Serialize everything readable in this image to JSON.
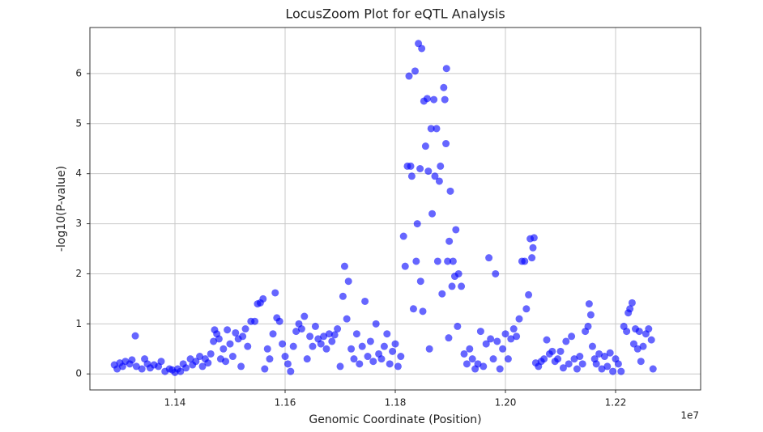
{
  "chart_data": {
    "type": "scatter",
    "title": "LocusZoom Plot for eQTL Analysis",
    "x_label": "Genomic Coordinate (Position)",
    "y_label": "-log10(P-value)",
    "x_offset_label": "1e7",
    "color": "#0000ff",
    "alpha": 0.6,
    "grid": true,
    "xlim": [
      11245600,
      12354400
    ],
    "ylim": [
      -0.32,
      6.92
    ],
    "xticks": [
      {
        "value": 11400000,
        "label": "1.14"
      },
      {
        "value": 11600000,
        "label": "1.16"
      },
      {
        "value": 11800000,
        "label": "1.18"
      },
      {
        "value": 12000000,
        "label": "1.20"
      },
      {
        "value": 12200000,
        "label": "1.22"
      }
    ],
    "yticks": [
      0,
      1,
      2,
      3,
      4,
      5,
      6
    ],
    "x": [
      11290000,
      11295000,
      11300000,
      11305000,
      11310000,
      11318000,
      11322000,
      11328000,
      11330000,
      11340000,
      11345000,
      11350000,
      11355000,
      11362000,
      11370000,
      11375000,
      11382000,
      11390000,
      11395000,
      11400000,
      11405000,
      11410000,
      11415000,
      11420000,
      11428000,
      11432000,
      11438000,
      11445000,
      11450000,
      11455000,
      11460000,
      11465000,
      11470000,
      11472000,
      11476000,
      11480000,
      11483000,
      11488000,
      11492000,
      11495000,
      11500000,
      11505000,
      11510000,
      11515000,
      11520000,
      11523000,
      11528000,
      11532000,
      11538000,
      11545000,
      11550000,
      11555000,
      11560000,
      11563000,
      11568000,
      11572000,
      11578000,
      11582000,
      11585000,
      11590000,
      11595000,
      11600000,
      11605000,
      11610000,
      11615000,
      11620000,
      11625000,
      11630000,
      11635000,
      11640000,
      11645000,
      11650000,
      11655000,
      11660000,
      11665000,
      11670000,
      11675000,
      11680000,
      11685000,
      11690000,
      11695000,
      11700000,
      11705000,
      11708000,
      11712000,
      11715000,
      11720000,
      11725000,
      11730000,
      11735000,
      11740000,
      11745000,
      11750000,
      11755000,
      11760000,
      11765000,
      11770000,
      11775000,
      11780000,
      11785000,
      11790000,
      11795000,
      11800000,
      11805000,
      11810000,
      11815000,
      11818000,
      11822000,
      11825000,
      11828000,
      11830000,
      11833000,
      11836000,
      11838000,
      11840000,
      11842000,
      11845000,
      11846000,
      11848000,
      11850000,
      11852000,
      11855000,
      11858000,
      11860000,
      11862000,
      11865000,
      11867000,
      11870000,
      11872000,
      11875000,
      11877000,
      11880000,
      11882000,
      11885000,
      11888000,
      11890000,
      11892000,
      11893000,
      11895000,
      11897000,
      11898000,
      11900000,
      11903000,
      11905000,
      11908000,
      11910000,
      11913000,
      11915000,
      11920000,
      11925000,
      11930000,
      11935000,
      11940000,
      11945000,
      11950000,
      11955000,
      11960000,
      11965000,
      11970000,
      11973000,
      11978000,
      11982000,
      11985000,
      11990000,
      11995000,
      12000000,
      12005000,
      12010000,
      12015000,
      12020000,
      12025000,
      12030000,
      12035000,
      12038000,
      12042000,
      12045000,
      12048000,
      12050000,
      12052000,
      12055000,
      12060000,
      12065000,
      12070000,
      12075000,
      12080000,
      12085000,
      12090000,
      12095000,
      12100000,
      12105000,
      12110000,
      12115000,
      12120000,
      12125000,
      12130000,
      12135000,
      12140000,
      12145000,
      12150000,
      12152000,
      12155000,
      12158000,
      12162000,
      12165000,
      12170000,
      12175000,
      12180000,
      12185000,
      12190000,
      12195000,
      12200000,
      12205000,
      12210000,
      12215000,
      12220000,
      12223000,
      12226000,
      12230000,
      12233000,
      12236000,
      12240000,
      12243000,
      12246000,
      12250000,
      12255000,
      12260000,
      12265000,
      12268000
    ],
    "values": [
      0.18,
      0.1,
      0.22,
      0.15,
      0.25,
      0.2,
      0.28,
      0.76,
      0.15,
      0.1,
      0.3,
      0.2,
      0.12,
      0.18,
      0.15,
      0.25,
      0.05,
      0.1,
      0.08,
      0.03,
      0.1,
      0.05,
      0.2,
      0.12,
      0.3,
      0.18,
      0.25,
      0.35,
      0.15,
      0.3,
      0.22,
      0.4,
      0.65,
      0.88,
      0.8,
      0.7,
      0.3,
      0.5,
      0.25,
      0.88,
      0.6,
      0.35,
      0.82,
      0.7,
      0.15,
      0.75,
      0.9,
      0.55,
      1.05,
      1.05,
      1.4,
      1.42,
      1.5,
      0.1,
      0.5,
      0.3,
      0.8,
      1.62,
      1.12,
      1.05,
      0.6,
      0.35,
      0.2,
      0.05,
      0.55,
      0.85,
      1.0,
      0.9,
      1.15,
      0.3,
      0.75,
      0.55,
      0.95,
      0.7,
      0.6,
      0.75,
      0.5,
      0.8,
      0.65,
      0.78,
      0.9,
      0.15,
      1.55,
      2.15,
      1.1,
      1.85,
      0.5,
      0.3,
      0.8,
      0.2,
      0.55,
      1.45,
      0.35,
      0.65,
      0.25,
      1.0,
      0.4,
      0.3,
      0.55,
      0.8,
      0.2,
      0.45,
      0.6,
      0.15,
      0.35,
      2.75,
      2.15,
      4.15,
      5.95,
      4.15,
      3.95,
      1.3,
      6.05,
      2.25,
      3.0,
      6.6,
      4.1,
      1.85,
      6.5,
      1.25,
      5.45,
      4.55,
      5.5,
      4.05,
      0.5,
      4.9,
      3.2,
      5.48,
      3.95,
      4.9,
      2.25,
      3.85,
      4.15,
      1.6,
      5.72,
      5.48,
      4.6,
      6.1,
      2.25,
      0.72,
      2.65,
      3.65,
      1.75,
      2.25,
      1.95,
      2.88,
      0.95,
      2.0,
      1.75,
      0.4,
      0.2,
      0.5,
      0.3,
      0.1,
      0.2,
      0.85,
      0.15,
      0.6,
      2.32,
      0.7,
      0.3,
      2.0,
      0.65,
      0.1,
      0.5,
      0.8,
      0.3,
      0.7,
      0.9,
      0.75,
      1.1,
      2.25,
      2.25,
      1.3,
      1.58,
      2.7,
      2.32,
      2.52,
      2.72,
      0.22,
      0.15,
      0.25,
      0.3,
      0.68,
      0.4,
      0.45,
      0.25,
      0.3,
      0.45,
      0.12,
      0.65,
      0.2,
      0.75,
      0.3,
      0.1,
      0.35,
      0.2,
      0.85,
      0.95,
      1.4,
      1.18,
      0.55,
      0.3,
      0.2,
      0.4,
      0.1,
      0.35,
      0.15,
      0.42,
      0.05,
      0.3,
      0.2,
      0.05,
      0.95,
      0.85,
      1.22,
      1.3,
      1.42,
      0.6,
      0.9,
      0.5,
      0.85,
      0.25,
      0.55,
      0.8,
      0.9,
      0.68,
      0.1
    ]
  }
}
